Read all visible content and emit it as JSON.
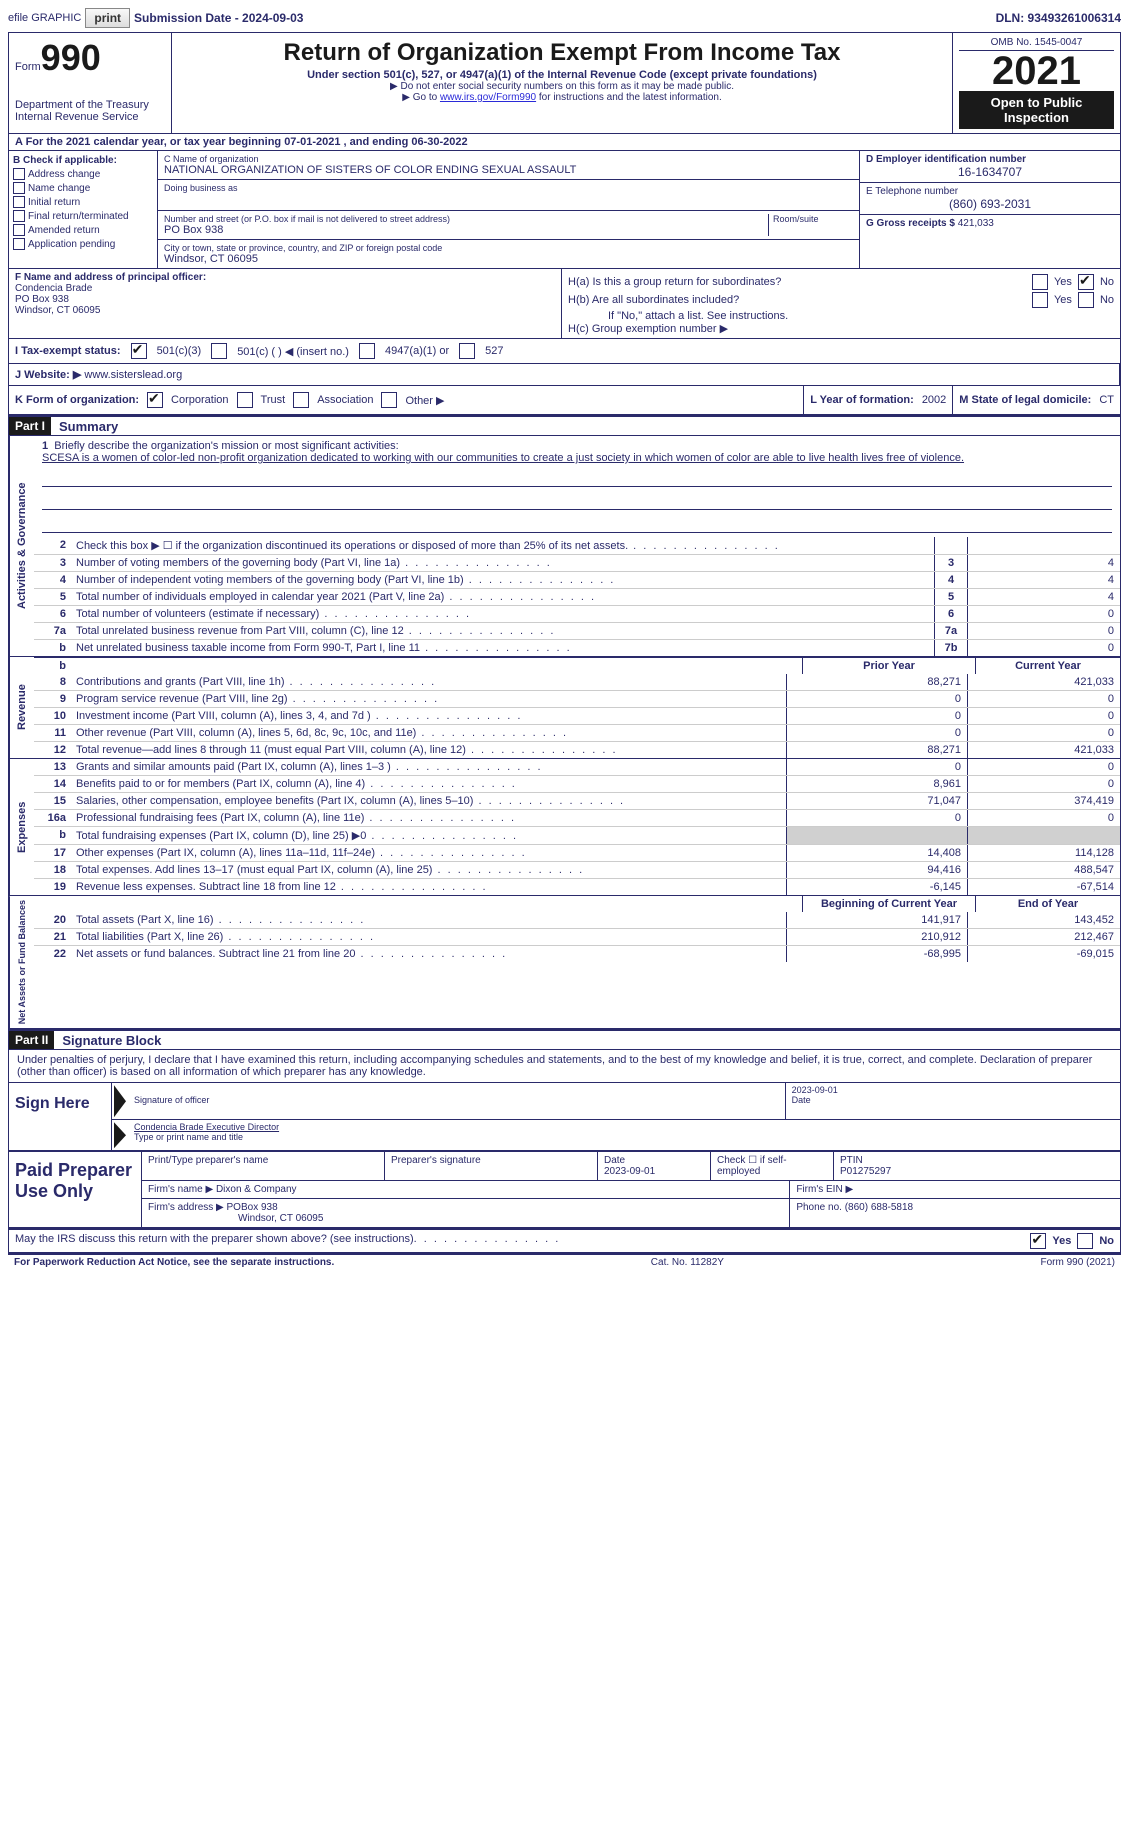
{
  "topbar": {
    "efile": "efile GRAPHIC",
    "print": "print",
    "submission": "Submission Date - 2024-09-03",
    "dln": "DLN: 93493261006314"
  },
  "header": {
    "form": "Form",
    "form_no": "990",
    "dept": "Department of the Treasury\nInternal Revenue Service",
    "title": "Return of Organization Exempt From Income Tax",
    "subtitle": "Under section 501(c), 527, or 4947(a)(1) of the Internal Revenue Code (except private foundations)",
    "note1": "▶ Do not enter social security numbers on this form as it may be made public.",
    "note2_prefix": "▶ Go to ",
    "note2_link": "www.irs.gov/Form990",
    "note2_suffix": " for instructions and the latest information.",
    "omb": "OMB No. 1545-0047",
    "year": "2021",
    "inspection": "Open to Public Inspection"
  },
  "rowA": "A For the 2021 calendar year, or tax year beginning 07-01-2021   , and ending 06-30-2022",
  "colB": {
    "title": "B Check if applicable:",
    "items": [
      "Address change",
      "Name change",
      "Initial return",
      "Final return/terminated",
      "Amended return",
      "Application pending"
    ]
  },
  "colC": {
    "name_label": "C Name of organization",
    "name": "NATIONAL ORGANIZATION OF SISTERS OF COLOR ENDING SEXUAL ASSAULT",
    "dba_label": "Doing business as",
    "street_label": "Number and street (or P.O. box if mail is not delivered to street address)",
    "room_label": "Room/suite",
    "street": "PO Box 938",
    "city_label": "City or town, state or province, country, and ZIP or foreign postal code",
    "city": "Windsor, CT  06095"
  },
  "colD": {
    "ein_label": "D Employer identification number",
    "ein": "16-1634707",
    "tel_label": "E Telephone number",
    "tel": "(860) 693-2031",
    "gross_label": "G Gross receipts $",
    "gross": "421,033"
  },
  "colF": {
    "label": "F Name and address of principal officer:",
    "name": "Condencia Brade",
    "street": "PO Box 938",
    "city": "Windsor, CT  06095"
  },
  "colH": {
    "a_label": "H(a)  Is this a group return for subordinates?",
    "b_label": "H(b)  Are all subordinates included?",
    "b_note": "If \"No,\" attach a list. See instructions.",
    "c_label": "H(c)  Group exemption number ▶",
    "yes": "Yes",
    "no": "No"
  },
  "rowI": {
    "label": "I  Tax-exempt status:",
    "opt1": "501(c)(3)",
    "opt2": "501(c) (  ) ◀ (insert no.)",
    "opt3": "4947(a)(1) or",
    "opt4": "527"
  },
  "rowJ": {
    "label": "J  Website: ▶",
    "val": "www.sisterslead.org"
  },
  "rowK": {
    "label": "K Form of organization:",
    "corp": "Corporation",
    "trust": "Trust",
    "assoc": "Association",
    "other": "Other ▶"
  },
  "rowL": {
    "label": "L Year of formation:",
    "val": "2002"
  },
  "rowM": {
    "label": "M State of legal domicile:",
    "val": "CT"
  },
  "partI": {
    "hdr": "Part I",
    "title": "Summary"
  },
  "mission": {
    "num": "1",
    "label": "Briefly describe the organization's mission or most significant activities:",
    "text": "SCESA is a women of color-led non-profit organization dedicated to working with our communities to create a just society in which women of color are able to live health lives free of violence."
  },
  "vtabs": {
    "gov": "Activities & Governance",
    "rev": "Revenue",
    "exp": "Expenses",
    "net": "Net Assets or Fund Balances"
  },
  "lines_gov": [
    {
      "n": "2",
      "t": "Check this box ▶ ☐ if the organization discontinued its operations or disposed of more than 25% of its net assets.",
      "box": "",
      "v": ""
    },
    {
      "n": "3",
      "t": "Number of voting members of the governing body (Part VI, line 1a)",
      "box": "3",
      "v": "4"
    },
    {
      "n": "4",
      "t": "Number of independent voting members of the governing body (Part VI, line 1b)",
      "box": "4",
      "v": "4"
    },
    {
      "n": "5",
      "t": "Total number of individuals employed in calendar year 2021 (Part V, line 2a)",
      "box": "5",
      "v": "4"
    },
    {
      "n": "6",
      "t": "Total number of volunteers (estimate if necessary)",
      "box": "6",
      "v": "0"
    },
    {
      "n": "7a",
      "t": "Total unrelated business revenue from Part VIII, column (C), line 12",
      "box": "7a",
      "v": "0"
    },
    {
      "n": "b",
      "t": "Net unrelated business taxable income from Form 990-T, Part I, line 11",
      "box": "7b",
      "v": "0"
    }
  ],
  "col_hdrs": {
    "prior": "Prior Year",
    "current": "Current Year"
  },
  "lines_rev": [
    {
      "n": "8",
      "t": "Contributions and grants (Part VIII, line 1h)",
      "p": "88,271",
      "c": "421,033"
    },
    {
      "n": "9",
      "t": "Program service revenue (Part VIII, line 2g)",
      "p": "0",
      "c": "0"
    },
    {
      "n": "10",
      "t": "Investment income (Part VIII, column (A), lines 3, 4, and 7d )",
      "p": "0",
      "c": "0"
    },
    {
      "n": "11",
      "t": "Other revenue (Part VIII, column (A), lines 5, 6d, 8c, 9c, 10c, and 11e)",
      "p": "0",
      "c": "0"
    },
    {
      "n": "12",
      "t": "Total revenue—add lines 8 through 11 (must equal Part VIII, column (A), line 12)",
      "p": "88,271",
      "c": "421,033"
    }
  ],
  "lines_exp": [
    {
      "n": "13",
      "t": "Grants and similar amounts paid (Part IX, column (A), lines 1–3 )",
      "p": "0",
      "c": "0"
    },
    {
      "n": "14",
      "t": "Benefits paid to or for members (Part IX, column (A), line 4)",
      "p": "8,961",
      "c": "0"
    },
    {
      "n": "15",
      "t": "Salaries, other compensation, employee benefits (Part IX, column (A), lines 5–10)",
      "p": "71,047",
      "c": "374,419"
    },
    {
      "n": "16a",
      "t": "Professional fundraising fees (Part IX, column (A), line 11e)",
      "p": "0",
      "c": "0"
    },
    {
      "n": "b",
      "t": "Total fundraising expenses (Part IX, column (D), line 25) ▶0",
      "p": "",
      "c": "",
      "shaded": true
    },
    {
      "n": "17",
      "t": "Other expenses (Part IX, column (A), lines 11a–11d, 11f–24e)",
      "p": "14,408",
      "c": "114,128"
    },
    {
      "n": "18",
      "t": "Total expenses. Add lines 13–17 (must equal Part IX, column (A), line 25)",
      "p": "94,416",
      "c": "488,547"
    },
    {
      "n": "19",
      "t": "Revenue less expenses. Subtract line 18 from line 12",
      "p": "-6,145",
      "c": "-67,514"
    }
  ],
  "net_hdrs": {
    "begin": "Beginning of Current Year",
    "end": "End of Year"
  },
  "lines_net": [
    {
      "n": "20",
      "t": "Total assets (Part X, line 16)",
      "p": "141,917",
      "c": "143,452"
    },
    {
      "n": "21",
      "t": "Total liabilities (Part X, line 26)",
      "p": "210,912",
      "c": "212,467"
    },
    {
      "n": "22",
      "t": "Net assets or fund balances. Subtract line 21 from line 20",
      "p": "-68,995",
      "c": "-69,015"
    }
  ],
  "partII": {
    "hdr": "Part II",
    "title": "Signature Block"
  },
  "sig": {
    "penalty": "Under penalties of perjury, I declare that I have examined this return, including accompanying schedules and statements, and to the best of my knowledge and belief, it is true, correct, and complete. Declaration of preparer (other than officer) is based on all information of which preparer has any knowledge.",
    "sign_here": "Sign Here",
    "sig_label": "Signature of officer",
    "date_label": "Date",
    "date": "2023-09-01",
    "name": "Condencia Brade  Executive Director",
    "name_label": "Type or print name and title"
  },
  "prep": {
    "title": "Paid Preparer Use Only",
    "print_label": "Print/Type preparer's name",
    "sig_label": "Preparer's signature",
    "date_label": "Date",
    "date": "2023-09-01",
    "check_label": "Check ☐ if self-employed",
    "ptin_label": "PTIN",
    "ptin": "P01275297",
    "firm_name_label": "Firm's name   ▶",
    "firm_name": "Dixon & Company",
    "firm_ein_label": "Firm's EIN ▶",
    "firm_addr_label": "Firm's address ▶",
    "firm_addr": "POBox 938",
    "firm_city": "Windsor, CT  06095",
    "phone_label": "Phone no.",
    "phone": "(860) 688-5818"
  },
  "footer": {
    "discuss": "May the IRS discuss this return with the preparer shown above? (see instructions)",
    "yes": "Yes",
    "no": "No"
  },
  "bottom": {
    "pra": "For Paperwork Reduction Act Notice, see the separate instructions.",
    "cat": "Cat. No. 11282Y",
    "form": "Form 990 (2021)"
  }
}
